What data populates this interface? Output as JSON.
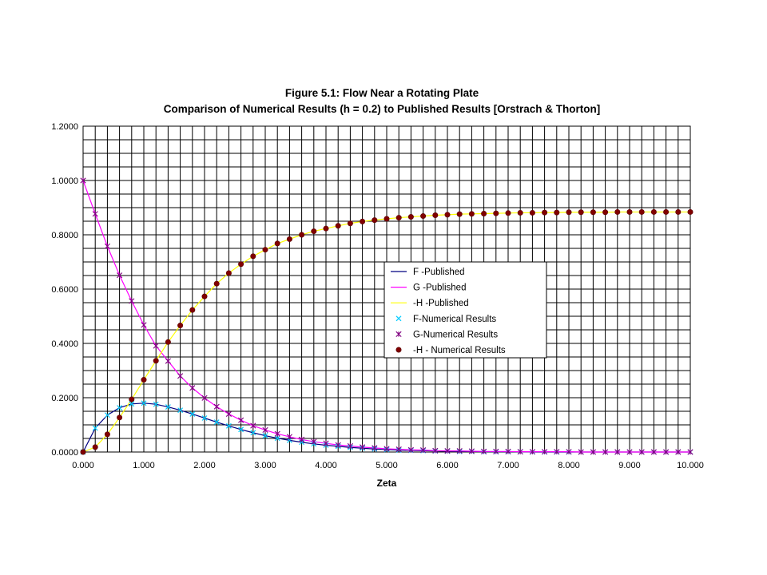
{
  "chart_data": {
    "type": "line",
    "title": "Figure 5.1: Flow Near a Rotating Plate",
    "subtitle": "Comparison of Numerical Results (h = 0.2) to Published Results [Orstrach & Thorton]",
    "xlabel": "Zeta",
    "ylabel": "",
    "xlim": [
      0,
      10
    ],
    "ylim": [
      0,
      1.2
    ],
    "x_ticks": [
      "0.000",
      "1.000",
      "2.000",
      "3.000",
      "4.000",
      "5.000",
      "6.000",
      "7.000",
      "8.000",
      "9.000",
      "10.000"
    ],
    "y_ticks": [
      "0.0000",
      "0.2000",
      "0.4000",
      "0.6000",
      "0.8000",
      "1.0000",
      "1.2000"
    ],
    "grid": true,
    "legend_position": "center-right",
    "x": [
      0,
      0.2,
      0.4,
      0.6,
      0.8,
      1.0,
      1.2,
      1.4,
      1.6,
      1.8,
      2.0,
      2.2,
      2.4,
      2.6,
      2.8,
      3.0,
      3.2,
      3.4,
      3.6,
      3.8,
      4.0,
      4.2,
      4.4,
      4.6,
      4.8,
      5.0,
      5.2,
      5.4,
      5.6,
      5.8,
      6.0,
      6.2,
      6.4,
      6.6,
      6.8,
      7.0,
      7.2,
      7.4,
      7.6,
      7.8,
      8.0,
      8.2,
      8.4,
      8.6,
      8.8,
      9.0,
      9.2,
      9.4,
      9.6,
      9.8,
      10.0
    ],
    "series": [
      {
        "name": "F -Published",
        "style": "line",
        "color": "#000080",
        "values": [
          0,
          0.088,
          0.136,
          0.163,
          0.177,
          0.18,
          0.176,
          0.166,
          0.154,
          0.14,
          0.125,
          0.11,
          0.096,
          0.083,
          0.071,
          0.06,
          0.051,
          0.043,
          0.036,
          0.03,
          0.025,
          0.021,
          0.017,
          0.014,
          0.011,
          0.009,
          0.007,
          0.006,
          0.005,
          0.004,
          0.003,
          0.002,
          0.002,
          0.001,
          0.001,
          0.001,
          0.001,
          0,
          0,
          0,
          0,
          0,
          0,
          0,
          0,
          0,
          0,
          0,
          0,
          0,
          0
        ]
      },
      {
        "name": "G -Published",
        "style": "line",
        "color": "#ff00ff",
        "values": [
          1.0,
          0.877,
          0.758,
          0.651,
          0.556,
          0.468,
          0.391,
          0.335,
          0.28,
          0.236,
          0.199,
          0.167,
          0.14,
          0.117,
          0.097,
          0.081,
          0.067,
          0.056,
          0.046,
          0.038,
          0.032,
          0.026,
          0.022,
          0.018,
          0.015,
          0.012,
          0.01,
          0.008,
          0.007,
          0.005,
          0.004,
          0.004,
          0.003,
          0.002,
          0.002,
          0.002,
          0.001,
          0.001,
          0.001,
          0.001,
          0.001,
          0,
          0,
          0,
          0,
          0,
          0,
          0,
          0,
          0,
          0
        ]
      },
      {
        "name": "-H -Published",
        "style": "line",
        "color": "#ffff00",
        "values": [
          0,
          0.018,
          0.065,
          0.127,
          0.194,
          0.266,
          0.336,
          0.405,
          0.466,
          0.523,
          0.573,
          0.62,
          0.659,
          0.692,
          0.721,
          0.745,
          0.768,
          0.784,
          0.8,
          0.813,
          0.823,
          0.833,
          0.842,
          0.849,
          0.854,
          0.859,
          0.863,
          0.866,
          0.869,
          0.872,
          0.874,
          0.876,
          0.877,
          0.878,
          0.879,
          0.88,
          0.881,
          0.881,
          0.882,
          0.882,
          0.883,
          0.883,
          0.883,
          0.883,
          0.884,
          0.884,
          0.884,
          0.884,
          0.884,
          0.884,
          0.884
        ]
      },
      {
        "name": "F-Numerical Results",
        "style": "marker-x",
        "color": "#00ccff",
        "values": [
          0,
          0.088,
          0.136,
          0.163,
          0.177,
          0.18,
          0.176,
          0.166,
          0.154,
          0.14,
          0.125,
          0.11,
          0.096,
          0.083,
          0.071,
          0.06,
          0.051,
          0.043,
          0.036,
          0.03,
          0.025,
          0.021,
          0.017,
          0.014,
          0.011,
          0.009,
          0.007,
          0.006,
          0.005,
          0.004,
          0.003,
          0.002,
          0.002,
          0.001,
          0.001,
          0.001,
          0.001,
          0,
          0,
          0,
          0,
          0,
          0,
          0,
          0,
          0,
          0,
          0,
          0,
          0,
          0
        ]
      },
      {
        "name": "G-Numerical Results",
        "style": "marker-star",
        "color": "#800080",
        "values": [
          1.0,
          0.877,
          0.758,
          0.651,
          0.556,
          0.468,
          0.391,
          0.335,
          0.28,
          0.236,
          0.199,
          0.167,
          0.14,
          0.117,
          0.097,
          0.081,
          0.067,
          0.056,
          0.046,
          0.038,
          0.032,
          0.026,
          0.022,
          0.018,
          0.015,
          0.012,
          0.01,
          0.008,
          0.007,
          0.005,
          0.004,
          0.004,
          0.003,
          0.002,
          0.002,
          0.002,
          0.001,
          0.001,
          0.001,
          0.001,
          0.001,
          0,
          0,
          0,
          0,
          0,
          0,
          0,
          0,
          0,
          0
        ]
      },
      {
        "name": "-H - Numerical Results",
        "style": "marker-circle",
        "color": "#800000",
        "values": [
          0,
          0.018,
          0.065,
          0.127,
          0.194,
          0.266,
          0.336,
          0.405,
          0.466,
          0.523,
          0.573,
          0.62,
          0.659,
          0.692,
          0.721,
          0.745,
          0.768,
          0.784,
          0.8,
          0.813,
          0.823,
          0.833,
          0.842,
          0.849,
          0.854,
          0.859,
          0.863,
          0.866,
          0.869,
          0.872,
          0.874,
          0.876,
          0.877,
          0.878,
          0.879,
          0.88,
          0.881,
          0.881,
          0.882,
          0.882,
          0.883,
          0.883,
          0.883,
          0.883,
          0.884,
          0.884,
          0.884,
          0.884,
          0.884,
          0.884,
          0.884
        ]
      }
    ]
  }
}
